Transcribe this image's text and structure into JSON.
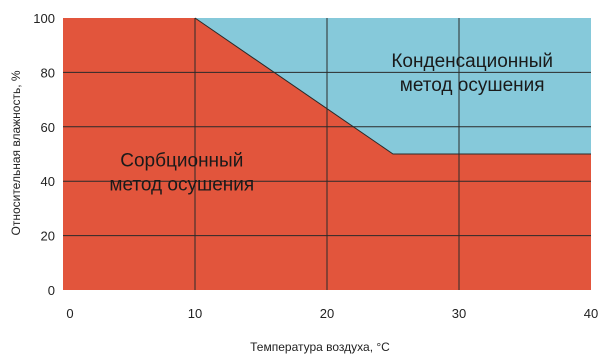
{
  "chart_data": {
    "type": "area",
    "title": "",
    "xlabel": "Температура воздуха, °C",
    "ylabel": "Относительная влажность, %",
    "xlim": [
      0,
      40
    ],
    "ylim": [
      0,
      100
    ],
    "x_ticks": [
      0,
      10,
      20,
      30,
      40
    ],
    "y_ticks": [
      0,
      20,
      40,
      60,
      80,
      100
    ],
    "grid": true,
    "boundary": {
      "x": [
        10,
        25,
        40
      ],
      "y": [
        100,
        50,
        50
      ]
    },
    "regions": [
      {
        "name": "sorption",
        "label_lines": [
          "Сорбционный",
          "метод осушения"
        ],
        "label_at": {
          "x": 9,
          "y": 44
        },
        "color": "#e2553c",
        "side": "below"
      },
      {
        "name": "condensation",
        "label_lines": [
          "Конденсационный",
          "метод осушения"
        ],
        "label_at": {
          "x": 31,
          "y": 80.5
        },
        "color": "#86c9da",
        "side": "above"
      }
    ]
  }
}
